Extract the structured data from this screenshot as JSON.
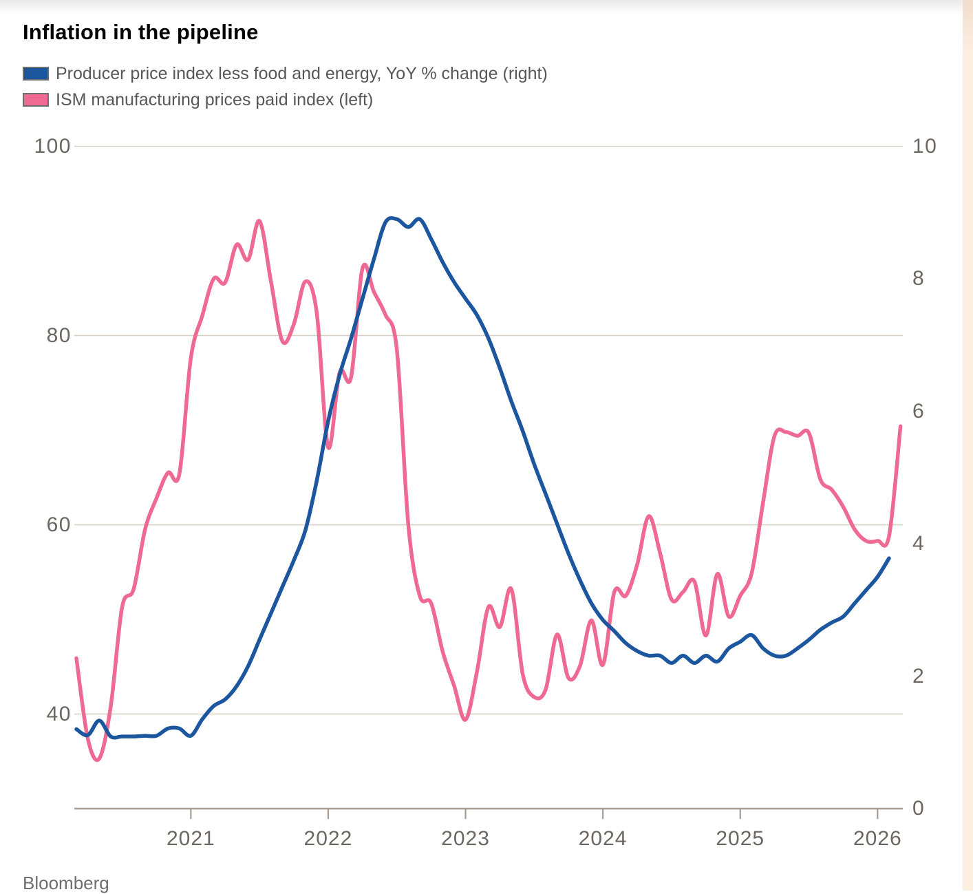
{
  "page": {
    "title": "Inflation in the pipeline",
    "source": "Bloomberg"
  },
  "legend": [
    {
      "label": "Producer price index less food and energy, YoY % change (right)",
      "color": "#1b569f"
    },
    {
      "label": "ISM manufacturing prices paid index (left)",
      "color": "#ef6a92"
    }
  ],
  "colors": {
    "blue_line": "#1b569f",
    "pink_line": "#ef6a92",
    "gridline": "#d7cfc4",
    "axis": "#a69c92",
    "axis_text": "#6c6660",
    "legend_text": "#57575a",
    "right_band": "#fdeee2"
  },
  "chart_data": {
    "type": "line",
    "title": "Inflation in the pipeline",
    "frequency": "monthly",
    "grid": "horizontal-only",
    "legend_position": "top-left",
    "x_tick_labels": [
      "2021",
      "2022",
      "2023",
      "2024",
      "2025",
      "2026"
    ],
    "left_axis": {
      "label": "ISM manufacturing prices paid index",
      "min": 30,
      "max": 100,
      "ticks": [
        100,
        80,
        60,
        40
      ],
      "tick_labels": [
        "100",
        "80",
        "60",
        "40"
      ]
    },
    "right_axis": {
      "label": "Producer price index less food and energy, YoY % change",
      "min": 0,
      "max": 10,
      "ticks": [
        10,
        8,
        6,
        4,
        2,
        0
      ],
      "tick_labels": [
        "10",
        "8",
        "6",
        "4",
        "2",
        "0"
      ]
    },
    "series": [
      {
        "name": "ISM manufacturing prices paid index (left)",
        "axis": "left",
        "color": "#ef6a92",
        "start_month": "2020-02",
        "end_month": "2026-02",
        "values": [
          45.9,
          37.4,
          35.3,
          40.8,
          51.3,
          53.2,
          59.5,
          62.8,
          65.5,
          65.4,
          77.6,
          82.1,
          86.0,
          85.6,
          89.6,
          88.0,
          92.1,
          85.7,
          79.4,
          81.2,
          85.7,
          82.4,
          68.2,
          76.1,
          75.6,
          87.1,
          84.6,
          82.2,
          78.5,
          60.0,
          52.5,
          51.7,
          46.6,
          43.0,
          39.4,
          44.5,
          51.3,
          49.2,
          53.2,
          44.2,
          41.8,
          42.6,
          48.4,
          43.8,
          45.1,
          49.9,
          45.2,
          52.9,
          52.5,
          55.8,
          60.9,
          57.0,
          52.1,
          52.9,
          54.0,
          48.3,
          54.8,
          50.3,
          52.5,
          54.9,
          62.4,
          69.4,
          69.8,
          69.4,
          69.7,
          64.8,
          63.7,
          61.9,
          59.5,
          58.3,
          58.3,
          58.8,
          70.4
        ]
      },
      {
        "name": "Producer price index less food and energy, YoY % change (right)",
        "axis": "right",
        "color": "#1b569f",
        "start_month": "2020-02",
        "end_month": "2026-01",
        "values": [
          1.2,
          1.11,
          1.33,
          1.09,
          1.09,
          1.09,
          1.1,
          1.1,
          1.21,
          1.21,
          1.1,
          1.35,
          1.55,
          1.65,
          1.85,
          2.15,
          2.55,
          2.95,
          3.35,
          3.75,
          4.2,
          4.95,
          5.85,
          6.55,
          7.1,
          7.7,
          8.3,
          8.85,
          8.9,
          8.78,
          8.9,
          8.6,
          8.25,
          7.95,
          7.7,
          7.45,
          7.1,
          6.65,
          6.15,
          5.7,
          5.2,
          4.75,
          4.3,
          3.85,
          3.45,
          3.1,
          2.85,
          2.68,
          2.5,
          2.38,
          2.31,
          2.31,
          2.2,
          2.31,
          2.2,
          2.31,
          2.22,
          2.42,
          2.52,
          2.62,
          2.42,
          2.31,
          2.31,
          2.42,
          2.55,
          2.7,
          2.81,
          2.9,
          3.1,
          3.3,
          3.5,
          3.78
        ]
      }
    ]
  }
}
